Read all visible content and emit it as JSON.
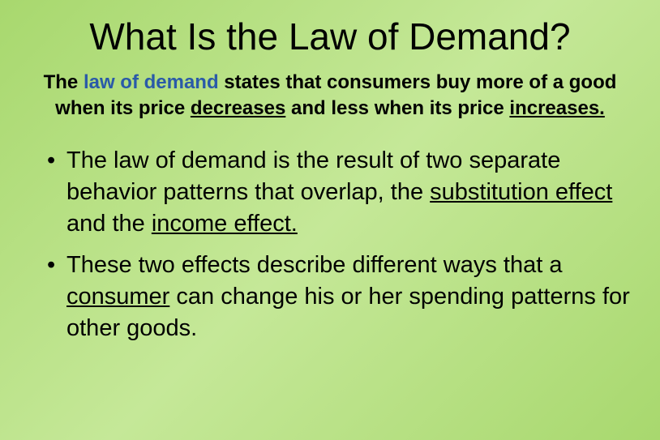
{
  "slide": {
    "background_gradient": [
      "#a8d86e",
      "#c5e898",
      "#a8d86e"
    ],
    "title": {
      "text": "What Is the Law of Demand?",
      "fontsize": 46,
      "color": "#000000"
    },
    "subtitle": {
      "pre": "The ",
      "key_term": "law of demand",
      "key_term_color": "#2a5aa8",
      "mid1": " states that consumers buy more of a good when its price ",
      "u1": "decreases",
      "mid2": " and less when its price ",
      "u2": "increases.",
      "fontsize": 24,
      "bold": true
    },
    "bullets": [
      {
        "pre": "The law of demand is the result of two separate behavior patterns that overlap, the ",
        "u1": "substitution effect",
        "mid": " and the ",
        "u2": "income effect."
      },
      {
        "pre": "These two effects describe different ways that a ",
        "u1": "consumer",
        "post": " can change his or her spending patterns for other goods."
      }
    ],
    "bullet_fontsize": 29
  }
}
